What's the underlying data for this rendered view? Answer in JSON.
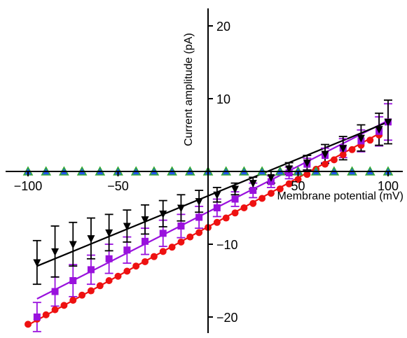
{
  "chart_data": {
    "type": "scatter",
    "title": "",
    "xlabel": "Membrane potential (mV)",
    "ylabel": "Current amplitude (pA)",
    "xlim": [
      -110,
      105
    ],
    "ylim": [
      -22,
      22
    ],
    "grid": false,
    "legend": "none",
    "x_ticks": [
      {
        "value": -100,
        "label": "−100"
      },
      {
        "value": -50,
        "label": "−50"
      },
      {
        "value": 50,
        "label": "50"
      },
      {
        "value": 100,
        "label": "100"
      }
    ],
    "y_ticks": [
      {
        "value": 20,
        "label": "20"
      },
      {
        "value": 10,
        "label": "10"
      },
      {
        "value": -10,
        "label": "−10"
      },
      {
        "value": -20,
        "label": "−20"
      }
    ],
    "series": [
      {
        "marker": "circle",
        "color": "#ee1111",
        "x": [
          -100,
          -95,
          -90,
          -85,
          -80,
          -75,
          -70,
          -65,
          -60,
          -55,
          -50,
          -45,
          -40,
          -35,
          -30,
          -25,
          -20,
          -15,
          -10,
          -5,
          0,
          5,
          10,
          15,
          20,
          25,
          30,
          35,
          40,
          45,
          50,
          55,
          60,
          65,
          70,
          75,
          80,
          85,
          90,
          95
        ],
        "y": [
          -21.0,
          -20.3,
          -19.7,
          -19.0,
          -18.4,
          -17.7,
          -17.0,
          -16.4,
          -15.7,
          -15.0,
          -14.4,
          -13.7,
          -13.0,
          -12.4,
          -11.7,
          -11.0,
          -10.4,
          -9.7,
          -9.0,
          -8.4,
          -7.7,
          -7.0,
          -6.4,
          -5.7,
          -5.0,
          -4.4,
          -3.7,
          -3.0,
          -2.4,
          -1.7,
          -1.1,
          -0.4,
          0.3,
          1.0,
          1.6,
          2.3,
          3.0,
          3.6,
          4.3,
          5.0
        ],
        "fit": {
          "from": [
            -100,
            -21.1
          ],
          "to": [
            95,
            5.2
          ]
        }
      },
      {
        "marker": "square",
        "color": "#9911dd",
        "x": [
          -95,
          -85,
          -75,
          -65,
          -55,
          -45,
          -35,
          -25,
          -15,
          -5,
          5,
          15,
          25,
          35,
          45,
          55,
          65,
          75,
          85,
          95,
          100
        ],
        "y": [
          -20.0,
          -16.5,
          -15.0,
          -13.5,
          -12.0,
          -10.8,
          -9.6,
          -8.5,
          -7.5,
          -6.3,
          -5.0,
          -3.8,
          -2.6,
          -1.4,
          -0.2,
          1.0,
          2.2,
          3.2,
          4.2,
          5.5,
          6.8
        ],
        "err": [
          2.0,
          2.0,
          2.2,
          2.0,
          2.0,
          1.8,
          1.8,
          1.8,
          1.6,
          1.5,
          1.2,
          1.0,
          1.0,
          0.8,
          0.8,
          0.8,
          1.0,
          1.3,
          1.5,
          2.0,
          2.5
        ],
        "fit": {
          "from": [
            -95,
            -17.5
          ],
          "to": [
            100,
            7.0
          ]
        }
      },
      {
        "marker": "triangle-down",
        "color": "#000000",
        "x": [
          -95,
          -85,
          -75,
          -65,
          -55,
          -45,
          -35,
          -25,
          -15,
          -5,
          5,
          15,
          25,
          35,
          45,
          55,
          65,
          75,
          85,
          95,
          100
        ],
        "y": [
          -12.5,
          -11.0,
          -10.0,
          -9.2,
          -8.4,
          -7.5,
          -6.6,
          -5.8,
          -5.0,
          -4.1,
          -3.2,
          -2.4,
          -1.6,
          -0.8,
          0.4,
          1.2,
          2.4,
          3.2,
          4.6,
          5.8,
          6.8
        ],
        "err": [
          3.0,
          3.5,
          3.0,
          2.8,
          2.5,
          2.2,
          2.0,
          1.8,
          1.8,
          1.5,
          1.0,
          0.8,
          0.8,
          0.8,
          0.8,
          1.0,
          1.3,
          1.6,
          1.8,
          2.2,
          3.0
        ],
        "fit": {
          "from": [
            -95,
            -13.0
          ],
          "to": [
            100,
            6.8
          ]
        }
      },
      {
        "marker": "triangle-up",
        "color": "#2255ee",
        "outline": "#33aa33",
        "x": [
          -100,
          -90,
          -80,
          -70,
          -60,
          -50,
          -40,
          -30,
          -20,
          -10,
          0,
          10,
          20,
          30,
          40,
          50,
          60,
          70,
          80,
          90,
          100
        ],
        "y": [
          0,
          0,
          0,
          0,
          0,
          0,
          0,
          0,
          0,
          0,
          0,
          0,
          0,
          0,
          0,
          0,
          0,
          0,
          0,
          0,
          0
        ]
      }
    ]
  }
}
